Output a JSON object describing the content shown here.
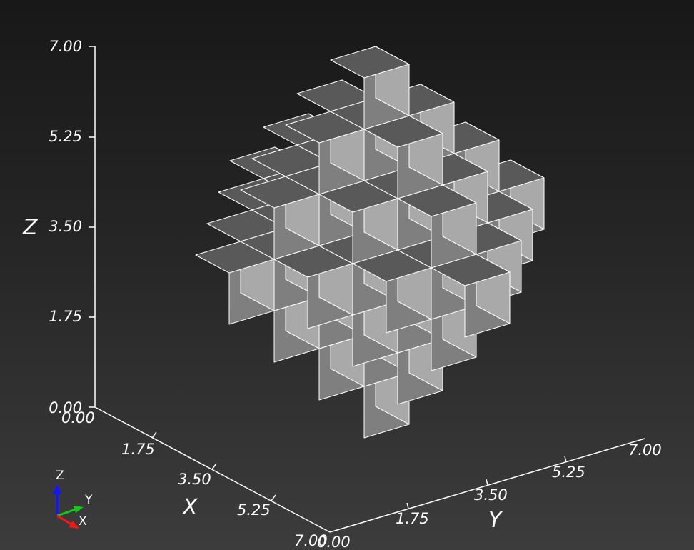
{
  "chart_data": {
    "type": "3d-voxel",
    "voxels_note": "",
    "z_axis": {
      "label": "Z",
      "range": [
        0.0,
        7.0
      ],
      "ticks": [
        "0.00",
        "1.75",
        "3.50",
        "5.25",
        "7.00"
      ]
    },
    "x_axis": {
      "label": "X",
      "range": [
        0.0,
        7.0
      ],
      "ticks": [
        "0.00",
        "1.75",
        "3.50",
        "5.25",
        "7.00"
      ]
    },
    "y_axis": {
      "label": "Y",
      "range": [
        0.0,
        7.0
      ],
      "ticks": [
        "0.00",
        "1.75",
        "3.50",
        "5.25",
        "7.00"
      ]
    },
    "colors": {
      "top": "#595959",
      "left": "#7f7f7f",
      "right": "#a9a9a9",
      "edge": "#ffffff",
      "axis": "#ffffff"
    }
  },
  "orientation_widget": {
    "z_label": "Z",
    "y_label": "Y",
    "x_label": "X",
    "colors": {
      "z": "#1414ff",
      "y": "#14c814",
      "x": "#ff1414"
    }
  }
}
